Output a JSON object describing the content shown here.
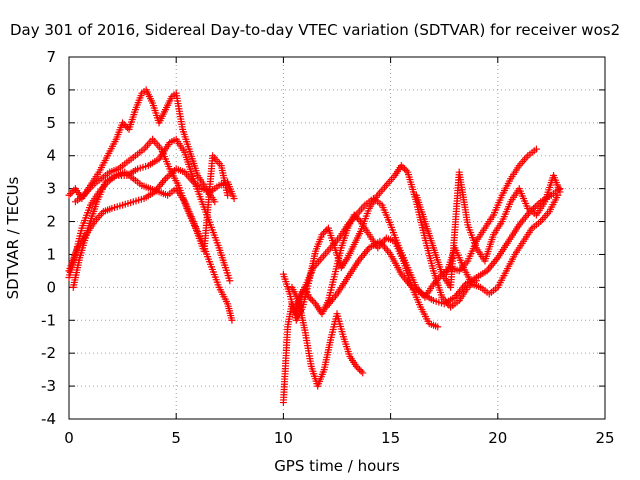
{
  "chart_data": {
    "type": "scatter",
    "title": "Day 301 of 2016, Sidereal Day-to-day VTEC variation (SDTVAR) for receiver wos2",
    "xlabel": "GPS time / hours",
    "ylabel": "SDTVAR / TECUs",
    "xlim": [
      0,
      25
    ],
    "ylim": [
      -4,
      7
    ],
    "xticks": [
      0,
      5,
      10,
      15,
      20,
      25
    ],
    "yticks": [
      -4,
      -3,
      -2,
      -1,
      0,
      1,
      2,
      3,
      4,
      5,
      6,
      7
    ],
    "grid": true,
    "legend": "none",
    "marker": "plus",
    "marker_color": "#ff0000",
    "series": [
      {
        "x": [
          0.0,
          0.3,
          0.6,
          1.0,
          1.4,
          1.8,
          2.2,
          2.6,
          3.0,
          3.4,
          3.8,
          4.2,
          4.6,
          5.0,
          5.4,
          5.8,
          6.2,
          6.6,
          7.0,
          7.4,
          7.6
        ],
        "y": [
          0.3,
          1.0,
          1.8,
          2.5,
          2.9,
          3.2,
          3.4,
          3.5,
          3.3,
          3.1,
          3.0,
          2.9,
          2.8,
          3.0,
          2.6,
          2.0,
          1.4,
          0.7,
          0.0,
          -0.5,
          -1.0
        ]
      },
      {
        "x": [
          0.0,
          0.3,
          0.6,
          1.0,
          1.4,
          1.8,
          2.2,
          2.5,
          2.8,
          3.1,
          3.4,
          3.6,
          3.9,
          4.2,
          4.5,
          4.8,
          5.0,
          5.3,
          5.6,
          6.0,
          6.4,
          6.8
        ],
        "y": [
          2.8,
          3.0,
          2.7,
          3.1,
          3.5,
          4.0,
          4.5,
          5.0,
          4.8,
          5.4,
          5.9,
          6.0,
          5.6,
          5.0,
          5.4,
          5.8,
          5.9,
          4.8,
          4.2,
          3.4,
          3.0,
          2.6
        ]
      },
      {
        "x": [
          0.0,
          0.4,
          0.8,
          1.2,
          1.6,
          2.0,
          2.5,
          3.0,
          3.5,
          4.0,
          4.5,
          5.0,
          5.4,
          5.8,
          6.2,
          6.6,
          7.0,
          7.4,
          7.7
        ],
        "y": [
          0.5,
          1.2,
          1.6,
          2.0,
          2.3,
          2.4,
          2.5,
          2.6,
          2.7,
          2.9,
          3.3,
          3.6,
          3.5,
          3.2,
          3.0,
          2.9,
          3.1,
          3.2,
          2.7
        ]
      },
      {
        "x": [
          0.2,
          0.5,
          0.9,
          1.3,
          1.7,
          2.2,
          2.7,
          3.2,
          3.7,
          4.2,
          4.7,
          5.0,
          5.4,
          5.8,
          6.2,
          6.6,
          7.0,
          7.3,
          7.5
        ],
        "y": [
          0.0,
          0.9,
          1.8,
          2.6,
          3.2,
          3.4,
          3.4,
          3.6,
          3.7,
          3.9,
          4.4,
          4.5,
          4.1,
          3.3,
          2.6,
          1.9,
          1.2,
          0.6,
          0.2
        ]
      },
      {
        "x": [
          0.3,
          0.7,
          1.1,
          1.5,
          1.9,
          2.3,
          2.7,
          3.1,
          3.5,
          3.9,
          4.3,
          4.7,
          5.1,
          5.5,
          5.9,
          6.3,
          6.7,
          7.1,
          7.4
        ],
        "y": [
          2.6,
          2.8,
          3.1,
          3.3,
          3.5,
          3.6,
          3.8,
          4.0,
          4.2,
          4.5,
          4.2,
          3.6,
          3.1,
          2.4,
          1.8,
          1.1,
          4.0,
          3.7,
          2.8
        ]
      },
      {
        "x": [
          10.0,
          10.2,
          10.4,
          10.6,
          10.8,
          11.0,
          11.2,
          11.5,
          11.8,
          12.1,
          12.4,
          12.7,
          13.0,
          13.3,
          13.6,
          14.0,
          14.4,
          14.8,
          15.2,
          15.6,
          16.0,
          16.4,
          16.8,
          17.2
        ],
        "y": [
          -3.5,
          -1.2,
          -0.5,
          -0.8,
          -0.2,
          0.0,
          -0.3,
          -0.5,
          -0.8,
          -0.4,
          0.4,
          1.2,
          1.8,
          2.2,
          2.0,
          1.6,
          1.2,
          1.5,
          1.4,
          0.8,
          0.0,
          -0.6,
          -1.1,
          -1.2
        ]
      },
      {
        "x": [
          10.0,
          10.3,
          10.6,
          10.9,
          11.2,
          11.5,
          11.8,
          12.1,
          12.4,
          12.7,
          13.0,
          13.3,
          13.6,
          14.0,
          14.4,
          14.8,
          15.2,
          15.5,
          15.8,
          16.2,
          16.6,
          17.0,
          17.4,
          17.8,
          18.2,
          18.6,
          19.0
        ],
        "y": [
          0.4,
          -0.2,
          -1.0,
          -0.6,
          0.2,
          1.1,
          1.6,
          1.8,
          1.2,
          0.6,
          0.9,
          1.3,
          1.7,
          2.4,
          2.8,
          3.1,
          3.4,
          3.7,
          3.5,
          2.6,
          1.5,
          0.5,
          -0.3,
          -0.6,
          -0.4,
          0.0,
          0.2
        ]
      },
      {
        "x": [
          10.4,
          10.7,
          11.0,
          11.3,
          11.6,
          11.9,
          12.2,
          12.5,
          12.8,
          13.1,
          13.4,
          13.7
        ],
        "y": [
          0.0,
          -0.4,
          -1.3,
          -2.4,
          -3.0,
          -2.5,
          -1.6,
          -0.8,
          -1.5,
          -2.1,
          -2.4,
          -2.6
        ]
      },
      {
        "x": [
          10.6,
          11.0,
          11.4,
          11.8,
          12.2,
          12.6,
          13.0,
          13.4,
          13.8,
          14.2,
          14.6,
          15.0,
          15.4,
          15.8,
          16.2,
          16.6,
          17.0,
          17.4,
          17.8,
          18.2,
          18.6,
          19.0,
          19.4,
          19.8,
          20.2,
          20.6,
          21.0,
          21.4,
          21.8
        ],
        "y": [
          -0.6,
          0.0,
          0.6,
          0.9,
          1.2,
          1.5,
          1.9,
          2.2,
          2.5,
          2.7,
          2.5,
          1.9,
          1.2,
          0.6,
          0.0,
          -0.3,
          0.1,
          0.4,
          0.6,
          0.5,
          0.8,
          1.4,
          1.8,
          2.2,
          2.8,
          3.3,
          3.7,
          4.0,
          4.2
        ]
      },
      {
        "x": [
          12.0,
          12.5,
          13.0,
          13.5,
          14.0,
          14.5,
          15.0,
          15.5,
          16.0,
          16.5,
          17.0,
          17.5,
          18.0,
          18.5,
          19.0,
          19.5,
          20.0,
          20.5,
          21.0,
          21.5,
          22.0,
          22.5,
          22.9
        ],
        "y": [
          -0.6,
          -0.2,
          0.3,
          0.8,
          1.2,
          1.4,
          1.0,
          0.4,
          0.0,
          -0.2,
          -0.4,
          -0.5,
          -0.3,
          0.1,
          0.3,
          0.5,
          0.9,
          1.4,
          1.9,
          2.3,
          2.6,
          2.8,
          3.0
        ]
      },
      {
        "x": [
          17.6,
          18.0,
          18.4,
          18.8,
          19.2,
          19.6,
          20.0,
          20.4,
          20.8,
          21.2,
          21.6,
          22.0,
          22.4,
          22.8
        ],
        "y": [
          0.4,
          1.2,
          0.6,
          0.1,
          0.0,
          -0.2,
          0.0,
          0.5,
          1.0,
          1.4,
          1.8,
          2.0,
          2.3,
          2.8
        ]
      },
      {
        "x": [
          16.2,
          16.6,
          17.0,
          17.4,
          17.8,
          18.2,
          18.6,
          19.0,
          19.4,
          19.8,
          20.2,
          20.6,
          21.0,
          21.4,
          21.8,
          22.2,
          22.6,
          22.9
        ],
        "y": [
          2.8,
          2.0,
          1.2,
          0.4,
          0.0,
          3.5,
          1.9,
          1.2,
          0.8,
          1.6,
          2.0,
          2.6,
          3.0,
          2.4,
          2.2,
          2.6,
          3.4,
          2.9
        ]
      }
    ]
  }
}
